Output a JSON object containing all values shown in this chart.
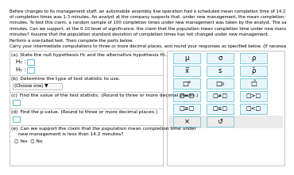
{
  "bg_color": "#ffffff",
  "border_color": "#bbbbbb",
  "teal_color": "#5bb8d4",
  "teal_bg": "#e8f6fa",
  "gray_bg": "#ebebeb",
  "intro_lines": [
    "Before changes to its management staff, an automobile assembly line operation had a scheduled mean completion time of 14.2 minutes. The standard deviation",
    "of completion times was 1.3 minutes. An analyst at the company suspects that, under new management, the mean completion time, μ, is now less than 14.2",
    "minutes. To test this claim, a random sample of 100 completion times under new management was taken by the analyst. The sample had a mean of 13.9",
    "minutes. Can we support, at the 0.10 level of significance, the claim that the population mean completion time under new management is less than 14.2",
    "minutes? Assume that the population standard deviation of completion times has not changed under new management."
  ],
  "perform_text": "Perform a one-tailed test. Then complete the parts below.",
  "carry_text": "Carry your intermediate computations to three or more decimal places, and round your responses as specified below. (If necessary, consult a list of formulas.)",
  "part_a_label": "(a) State the null hypothesis H₀ and the alternative hypothesis H₁.",
  "part_b_label": "(b) Determine the type of test statistic to use.",
  "choose_one": "(Choose one) ▼",
  "part_c_label": "(c) Find the value of the test statistic. (Round to three or more decimal places.)",
  "part_d_label": "(d) Find the p-value. (Round to three or more decimal places.)",
  "part_e_label_1": "(e) Can we support the claim that the population mean completion time under",
  "part_e_label_2": "   new management is less than 14.2 minutes?",
  "yes_no": "○ Yes  ○ No",
  "sym_r1": [
    "μ",
    "σ",
    "ρ"
  ],
  "sym_r2": [
    "x̅",
    "s",
    "ρ̂"
  ],
  "sym_r3": [
    "□²",
    "□₀",
    "□̂"
  ],
  "sym_r4": [
    "□=□",
    "□≠□",
    "□>□"
  ],
  "sym_r5": [
    "□≥□",
    "□≤□",
    "□<□"
  ],
  "sym_r6": [
    "×",
    "↺"
  ],
  "link_color": "#3366cc"
}
